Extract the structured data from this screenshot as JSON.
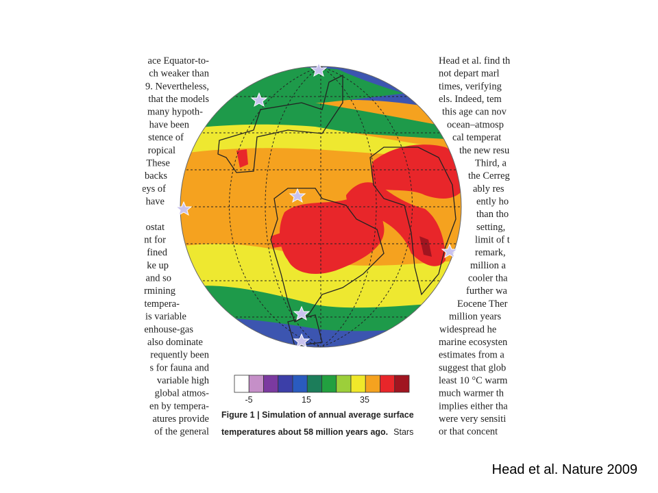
{
  "left_column": {
    "paragraphs": [
      [
        "ace Equator-to-",
        "ch weaker than",
        "9. Nevertheless,",
        "that the models",
        "many hypoth-",
        "have been",
        "stence of",
        "ropical",
        "These",
        "backs",
        "eys of",
        "have"
      ],
      [
        "ostat",
        "nt for",
        "fined",
        "ke up",
        "and so",
        "rmining",
        "tempera-",
        "is variable",
        "enhouse-gas",
        "also dominate",
        "requently been",
        "s for fauna and",
        "variable high",
        "global atmos-",
        "en by tempera-",
        "atures provide",
        "of the general"
      ]
    ]
  },
  "right_column": {
    "lines": [
      "Head et al. find th",
      "not depart marl",
      "times, verifying",
      "els. Indeed, tem",
      "this age can nov",
      "ocean–atmosp",
      "cal temperat",
      "the new resu",
      "Third, a",
      "the Cerreg",
      "ably res",
      "ently ho",
      "than tho",
      "setting,",
      "limit of t",
      "remark,",
      "million a",
      "cooler tha",
      "further wa",
      "Eocene Ther",
      "million years",
      "widespread he",
      "marine ecosysten",
      "estimates from a",
      "suggest that glob",
      "least 10 °C warm",
      "much warmer th",
      "implies either tha",
      "were very sensiti",
      "or that concent"
    ]
  },
  "colorbar": {
    "labels": [
      "-5",
      "15",
      "35"
    ]
  },
  "caption": {
    "line1": "Figure 1 | Simulation of annual average surface",
    "line2": "temperatures about 58 million years ago.",
    "line2_tail": "Stars"
  },
  "credit": "Head et al. Nature 2009"
}
